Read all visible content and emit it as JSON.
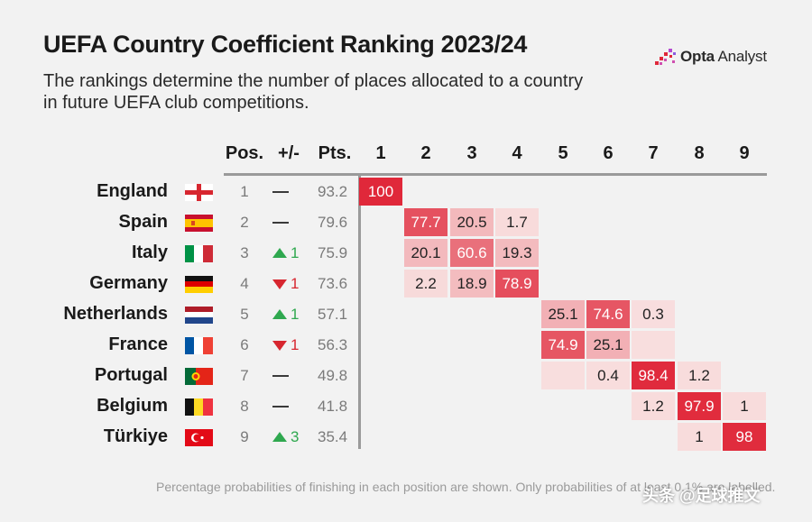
{
  "header": {
    "title": "UEFA Country Coefficient Ranking 2023/24",
    "subtitle_line1": "The rankings determine the number of places allocated to a country",
    "subtitle_line2": "in future UEFA club competitions.",
    "brand_bold": "Opta",
    "brand_rest": " Analyst"
  },
  "columns": {
    "pos": "Pos.",
    "change": "+/-",
    "pts": "Pts.",
    "positions": [
      "1",
      "2",
      "3",
      "4",
      "5",
      "6",
      "7",
      "8",
      "9"
    ]
  },
  "colors": {
    "background": "#f2f2f2",
    "up": "#2fa84f",
    "down": "#d7262f",
    "heat_low": "#f8dede",
    "heat_high": "#e0283a"
  },
  "footnote": "Percentage probabilities of finishing in each position are shown. Only probabilities of at least 0.1% are labelled.",
  "watermark": "头条 @足球推文",
  "chart_data": {
    "type": "heatmap",
    "title": "UEFA Country Coefficient Ranking 2023/24",
    "x_categories": [
      "1",
      "2",
      "3",
      "4",
      "5",
      "6",
      "7",
      "8",
      "9"
    ],
    "rows": [
      {
        "country": "England",
        "flag": "england",
        "pos": "1",
        "change": "—",
        "change_dir": "none",
        "change_val": "",
        "pts": "93.2",
        "cells": [
          {
            "col": 1,
            "value": 100
          }
        ]
      },
      {
        "country": "Spain",
        "flag": "spain",
        "pos": "2",
        "change": "—",
        "change_dir": "none",
        "change_val": "",
        "pts": "79.6",
        "cells": [
          {
            "col": 2,
            "value": 77.7
          },
          {
            "col": 3,
            "value": 20.5
          },
          {
            "col": 4,
            "value": 1.7
          }
        ]
      },
      {
        "country": "Italy",
        "flag": "italy",
        "pos": "3",
        "change": "▲1",
        "change_dir": "up",
        "change_val": "1",
        "pts": "75.9",
        "cells": [
          {
            "col": 2,
            "value": 20.1
          },
          {
            "col": 3,
            "value": 60.6
          },
          {
            "col": 4,
            "value": 19.3
          }
        ]
      },
      {
        "country": "Germany",
        "flag": "germany",
        "pos": "4",
        "change": "▼1",
        "change_dir": "down",
        "change_val": "1",
        "pts": "73.6",
        "cells": [
          {
            "col": 2,
            "value": 2.2
          },
          {
            "col": 3,
            "value": 18.9
          },
          {
            "col": 4,
            "value": 78.9
          }
        ]
      },
      {
        "country": "Netherlands",
        "flag": "netherlands",
        "pos": "5",
        "change": "▲1",
        "change_dir": "up",
        "change_val": "1",
        "pts": "57.1",
        "cells": [
          {
            "col": 5,
            "value": 25.1
          },
          {
            "col": 6,
            "value": 74.6
          },
          {
            "col": 7,
            "value": 0.3
          }
        ]
      },
      {
        "country": "France",
        "flag": "france",
        "pos": "6",
        "change": "▼1",
        "change_dir": "down",
        "change_val": "1",
        "pts": "56.3",
        "cells": [
          {
            "col": 5,
            "value": 74.9
          },
          {
            "col": 6,
            "value": 25.1
          },
          {
            "col": 7,
            "value": null
          }
        ]
      },
      {
        "country": "Portugal",
        "flag": "portugal",
        "pos": "7",
        "change": "—",
        "change_dir": "none",
        "change_val": "",
        "pts": "49.8",
        "cells": [
          {
            "col": 5,
            "value": null
          },
          {
            "col": 6,
            "value": 0.4
          },
          {
            "col": 7,
            "value": 98.4
          },
          {
            "col": 8,
            "value": 1.2
          }
        ]
      },
      {
        "country": "Belgium",
        "flag": "belgium",
        "pos": "8",
        "change": "—",
        "change_dir": "none",
        "change_val": "",
        "pts": "41.8",
        "cells": [
          {
            "col": 7,
            "value": 1.2
          },
          {
            "col": 8,
            "value": 97.9
          },
          {
            "col": 9,
            "value": 1
          }
        ]
      },
      {
        "country": "Türkiye",
        "flag": "turkiye",
        "pos": "9",
        "change": "▲3",
        "change_dir": "up",
        "change_val": "3",
        "pts": "35.4",
        "cells": [
          {
            "col": 8,
            "value": 1
          },
          {
            "col": 9,
            "value": 98
          }
        ]
      }
    ]
  }
}
